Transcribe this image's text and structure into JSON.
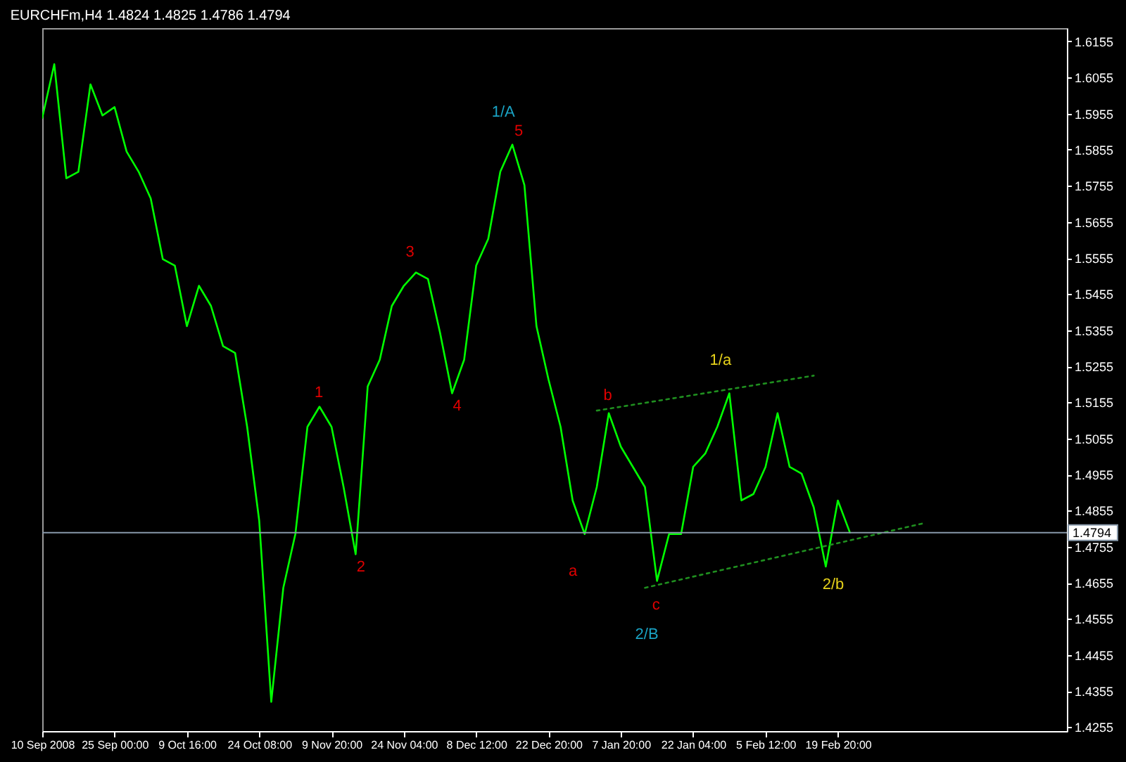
{
  "chart_data": {
    "type": "line",
    "title": "EURCHFm,H4  1.4824 1.4825 1.4786 1.4794",
    "categories": [
      "10 Sep 2008",
      null,
      null,
      null,
      null,
      null,
      "25 Sep 00:00",
      null,
      null,
      null,
      null,
      null,
      "9 Oct 16:00",
      null,
      null,
      null,
      null,
      null,
      "24 Oct 08:00",
      null,
      null,
      null,
      null,
      null,
      "9 Nov 20:00",
      null,
      null,
      null,
      null,
      null,
      "24 Nov 04:00",
      null,
      null,
      null,
      null,
      null,
      "8 Dec 12:00",
      null,
      null,
      null,
      null,
      null,
      "22 Dec 20:00",
      null,
      null,
      null,
      null,
      null,
      "7 Jan 20:00",
      null,
      null,
      null,
      null,
      null,
      "22 Jan 04:00",
      null,
      null,
      null,
      null,
      null,
      "5 Feb 12:00",
      null,
      null,
      null,
      null,
      null,
      "19 Feb 20:00",
      null,
      null,
      null,
      null,
      null,
      null,
      null,
      null,
      null,
      null,
      null,
      null,
      null,
      null,
      null,
      null,
      null,
      null,
      null
    ],
    "series": [
      {
        "color": "#00ff00",
        "line_style": "solid",
        "values": [
          1.5943,
          1.6092,
          1.5776,
          1.5794,
          1.6036,
          1.595,
          1.5973,
          1.585,
          1.5794,
          1.572,
          1.5552,
          1.5534,
          1.5366,
          1.5478,
          1.5422,
          1.5311,
          1.5292,
          1.5087,
          1.4827,
          1.4325,
          1.4641,
          1.479,
          1.5087,
          1.5143,
          1.5087,
          1.492,
          1.4734,
          1.5199,
          1.5273,
          1.5422,
          1.5478,
          1.5515,
          1.5497,
          1.5348,
          1.518,
          1.5273,
          1.5534,
          1.5608,
          1.5794,
          1.5869,
          1.5757,
          1.5366,
          1.5218,
          1.5087,
          1.4883,
          1.479,
          1.492,
          1.5125,
          1.5032,
          1.4976,
          1.492,
          1.466,
          1.479,
          1.479,
          1.4976,
          1.5013,
          1.5087,
          1.518,
          1.4883,
          1.4901,
          1.4976,
          1.5125,
          1.4976,
          1.4957,
          1.4864,
          1.47,
          1.4883,
          1.4794,
          null,
          null,
          null,
          null,
          null,
          null,
          null,
          null,
          null,
          null,
          null,
          null,
          null,
          null,
          null,
          null,
          null,
          null
        ]
      },
      {
        "color": "#1f8f1f",
        "line_style": "dotted",
        "values": [
          null,
          null,
          null,
          null,
          null,
          null,
          null,
          null,
          null,
          null,
          null,
          null,
          null,
          null,
          null,
          null,
          null,
          null,
          null,
          null,
          null,
          null,
          null,
          null,
          null,
          null,
          null,
          null,
          null,
          null,
          null,
          null,
          null,
          null,
          null,
          null,
          null,
          null,
          null,
          null,
          null,
          null,
          null,
          null,
          null,
          null,
          1.5132,
          null,
          null,
          null,
          null,
          null,
          null,
          null,
          null,
          null,
          null,
          null,
          null,
          null,
          null,
          null,
          null,
          null,
          1.5229,
          null,
          null,
          null,
          null,
          null,
          null,
          null,
          null,
          null,
          null,
          null,
          null,
          null,
          null,
          null,
          null,
          null,
          null,
          null,
          null,
          null
        ]
      },
      {
        "color": "#1f8f1f",
        "line_style": "dotted",
        "values": [
          null,
          null,
          null,
          null,
          null,
          null,
          null,
          null,
          null,
          null,
          null,
          null,
          null,
          null,
          null,
          null,
          null,
          null,
          null,
          null,
          null,
          null,
          null,
          null,
          null,
          null,
          null,
          null,
          null,
          null,
          null,
          null,
          null,
          null,
          null,
          null,
          null,
          null,
          null,
          null,
          null,
          null,
          null,
          null,
          null,
          null,
          null,
          null,
          null,
          null,
          1.4641,
          null,
          null,
          null,
          null,
          null,
          null,
          null,
          null,
          null,
          null,
          null,
          null,
          null,
          null,
          null,
          null,
          null,
          null,
          null,
          null,
          null,
          null,
          1.4819,
          null,
          null,
          null,
          null,
          null,
          null,
          null,
          null,
          null,
          null,
          null,
          null
        ]
      }
    ],
    "ylim": [
      1.4244,
      1.6192
    ],
    "yticks": [
      1.4255,
      1.4355,
      1.4455,
      1.4555,
      1.4655,
      1.4755,
      1.4855,
      1.4955,
      1.5055,
      1.5155,
      1.5255,
      1.5355,
      1.5455,
      1.5555,
      1.5655,
      1.5755,
      1.5855,
      1.5955,
      1.6055,
      1.6155
    ],
    "ref_lines": [
      {
        "axis": "y",
        "value": 1.4794,
        "label": "1.4794",
        "color": "#8899aa"
      }
    ],
    "annotations": [
      "1/A",
      "5",
      "3",
      "4",
      "1",
      "2",
      "a",
      "b",
      "c",
      "2/B",
      "1/a",
      "2/b"
    ],
    "grid": false,
    "marker": "none"
  }
}
